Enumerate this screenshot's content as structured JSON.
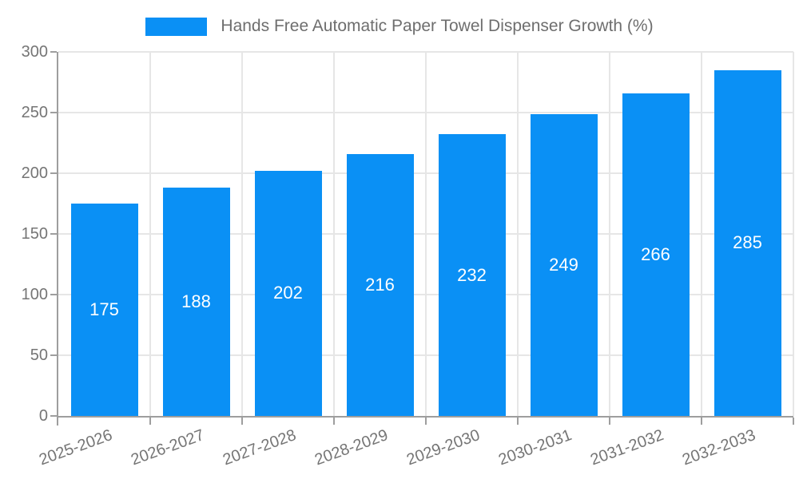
{
  "chart_data": {
    "type": "bar",
    "title": "Hands Free Automatic Paper Towel Dispenser Growth (%)",
    "categories": [
      "2025-2026",
      "2026-2027",
      "2027-2028",
      "2028-2029",
      "2029-2030",
      "2030-2031",
      "2031-2032",
      "2032-2033"
    ],
    "values": [
      175,
      188,
      202,
      216,
      232,
      249,
      266,
      285
    ],
    "xlabel": "",
    "ylabel": "",
    "ylim": [
      0,
      300
    ],
    "ytick_step": 50,
    "ytick_labels": [
      "0",
      "50",
      "100",
      "150",
      "200",
      "250",
      "300"
    ],
    "grid": true,
    "legend_position": "top",
    "value_labels_shown": true,
    "x_label_rotation_deg": -20
  },
  "colors": {
    "bar": "#0a90f5",
    "grid": "#e6e6e6",
    "axis": "#9e9e9e",
    "tick_text": "#757575",
    "title_text": "#6e6e6e",
    "value_text": "#ffffff",
    "background": "#ffffff"
  }
}
